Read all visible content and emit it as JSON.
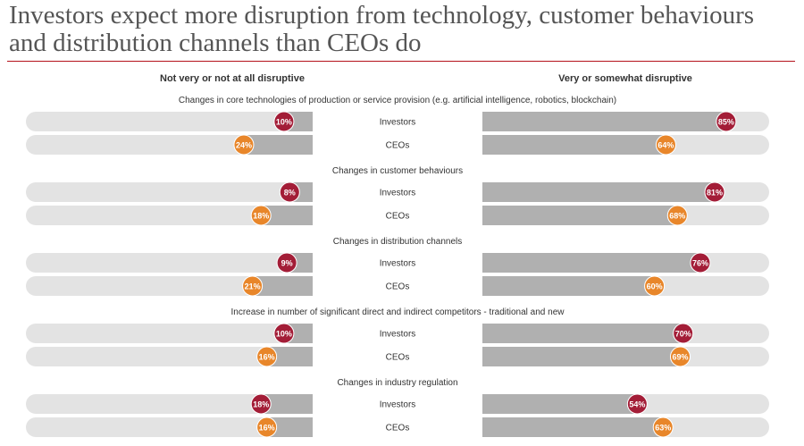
{
  "title": "Investors expect more disruption from technology, customer behaviours and distribution channels than CEOs do",
  "colors": {
    "investors": "#a31d37",
    "ceos": "#e8862a",
    "track": "#e3e3e3",
    "fill": "#b0b0b0",
    "rule": "#b5121b"
  },
  "chart_data": {
    "type": "bar",
    "title": "Investors expect more disruption from technology, customer behaviours and distribution channels than CEOs do",
    "left_header": "Not very or not at all disruptive",
    "right_header": "Very or somewhat disruptive",
    "unit": "%",
    "xlim": [
      0,
      100
    ],
    "groups": [
      {
        "label": "Changes in core technologies of production or service provision (e.g. artificial intelligence, robotics, blockchain)",
        "rows": [
          {
            "name": "Investors",
            "not_disruptive": 10,
            "disruptive": 85
          },
          {
            "name": "CEOs",
            "not_disruptive": 24,
            "disruptive": 64
          }
        ]
      },
      {
        "label": "Changes in customer behaviours",
        "rows": [
          {
            "name": "Investors",
            "not_disruptive": 8,
            "disruptive": 81
          },
          {
            "name": "CEOs",
            "not_disruptive": 18,
            "disruptive": 68
          }
        ]
      },
      {
        "label": "Changes in distribution channels",
        "rows": [
          {
            "name": "Investors",
            "not_disruptive": 9,
            "disruptive": 76
          },
          {
            "name": "CEOs",
            "not_disruptive": 21,
            "disruptive": 60
          }
        ]
      },
      {
        "label": "Increase in number of significant direct and indirect competitors - traditional and new",
        "rows": [
          {
            "name": "Investors",
            "not_disruptive": 10,
            "disruptive": 70
          },
          {
            "name": "CEOs",
            "not_disruptive": 16,
            "disruptive": 69
          }
        ]
      },
      {
        "label": "Changes in industry regulation",
        "rows": [
          {
            "name": "Investors",
            "not_disruptive": 18,
            "disruptive": 54
          },
          {
            "name": "CEOs",
            "not_disruptive": 16,
            "disruptive": 63
          }
        ]
      }
    ]
  }
}
